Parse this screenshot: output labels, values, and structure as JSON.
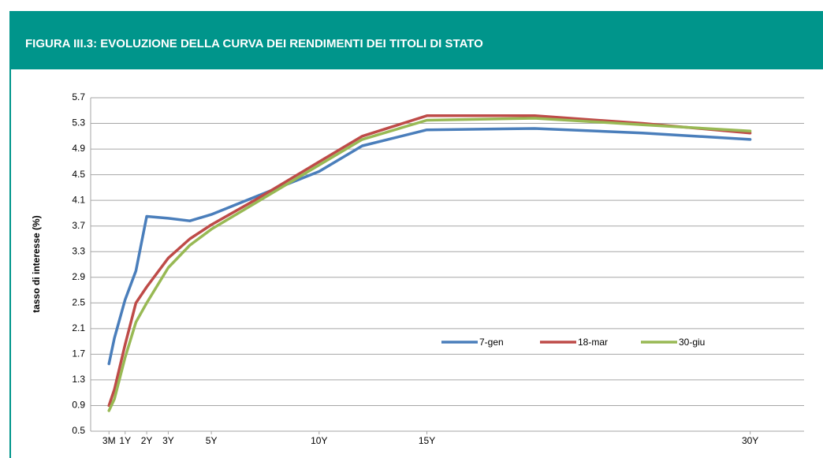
{
  "chart_data": {
    "type": "line",
    "title": "FIGURA III.3: EVOLUZIONE DELLA CURVA DEI RENDIMENTI DEI TITOLI DI STATO",
    "ylabel": "tasso di interesse (%)",
    "x": [
      0.25,
      0.5,
      1,
      1.5,
      2,
      3,
      4,
      5,
      7,
      10,
      12,
      15,
      20,
      25,
      30
    ],
    "series": [
      {
        "name": "7-gen",
        "color": "#4a7ebb",
        "values": [
          1.55,
          1.95,
          2.55,
          3.0,
          3.85,
          3.82,
          3.78,
          3.88,
          4.15,
          4.55,
          4.95,
          5.2,
          5.22,
          5.15,
          5.05
        ]
      },
      {
        "name": "18-mar",
        "color": "#be4b48",
        "values": [
          0.9,
          1.15,
          1.85,
          2.5,
          2.75,
          3.2,
          3.5,
          3.72,
          4.1,
          4.7,
          5.1,
          5.42,
          5.42,
          5.3,
          5.15
        ]
      },
      {
        "name": "30-giu",
        "color": "#98b954",
        "values": [
          0.82,
          1.0,
          1.65,
          2.2,
          2.5,
          3.05,
          3.4,
          3.65,
          4.05,
          4.65,
          5.05,
          5.35,
          5.38,
          5.28,
          5.18
        ]
      }
    ],
    "xlim": [
      -0.6,
      32.5
    ],
    "xticks": [
      {
        "value": 0.25,
        "label": "3M"
      },
      {
        "value": 1,
        "label": "1Y"
      },
      {
        "value": 2,
        "label": "2Y"
      },
      {
        "value": 3,
        "label": "3Y"
      },
      {
        "value": 5,
        "label": "5Y"
      },
      {
        "value": 10,
        "label": "10Y"
      },
      {
        "value": 15,
        "label": "15Y"
      },
      {
        "value": 30,
        "label": "30Y"
      }
    ],
    "ylim": [
      0.5,
      5.7
    ],
    "yticks": [
      0.5,
      0.9,
      1.3,
      1.7,
      2.1,
      2.5,
      2.9,
      3.3,
      3.7,
      4.1,
      4.5,
      4.9,
      5.3,
      5.7
    ],
    "grid": true
  }
}
